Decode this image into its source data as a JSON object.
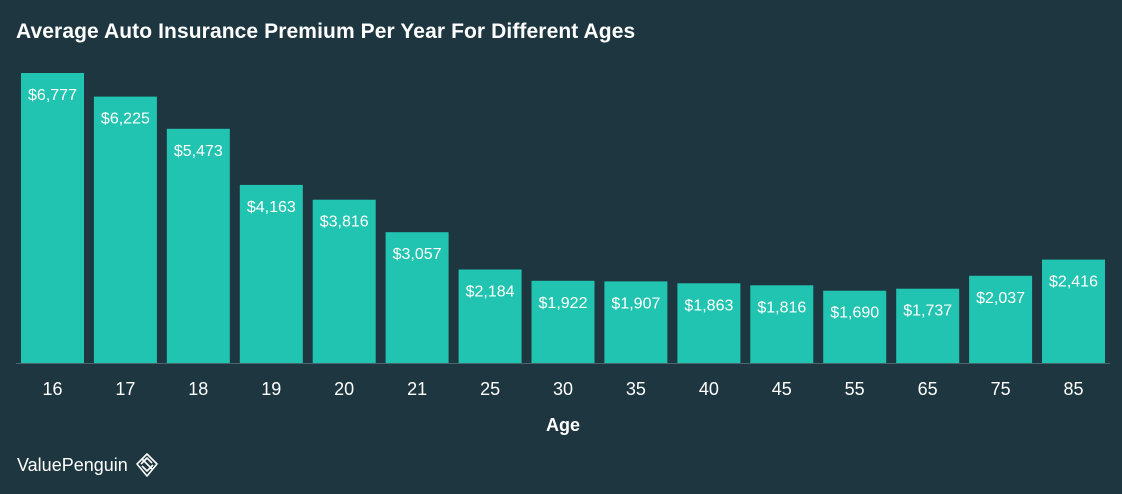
{
  "chart_data": {
    "type": "bar",
    "title": "Average Auto Insurance Premium Per Year For Different Ages",
    "xlabel": "Age",
    "ylabel": "",
    "categories": [
      "16",
      "17",
      "18",
      "19",
      "20",
      "21",
      "25",
      "30",
      "35",
      "40",
      "45",
      "55",
      "65",
      "75",
      "85"
    ],
    "values": [
      6777,
      6225,
      5473,
      4163,
      3816,
      3057,
      2184,
      1922,
      1907,
      1863,
      1816,
      1690,
      1737,
      2037,
      2416
    ],
    "value_labels": [
      "$6,777",
      "$6,225",
      "$5,473",
      "$4,163",
      "$3,816",
      "$3,057",
      "$2,184",
      "$1,922",
      "$1,907",
      "$1,863",
      "$1,816",
      "$1,690",
      "$1,737",
      "$2,037",
      "$2,416"
    ],
    "ylim": [
      0,
      6777
    ],
    "grid": false,
    "legend": "none",
    "colors": {
      "background": "#1d3640",
      "bar": "#21c4b0",
      "bar_label": "#ffffff",
      "axis_text": "#ffffff",
      "baseline": "#4a6470"
    }
  },
  "brand": {
    "name": "ValuePenguin",
    "icon": "valuepenguin-logo-icon"
  }
}
